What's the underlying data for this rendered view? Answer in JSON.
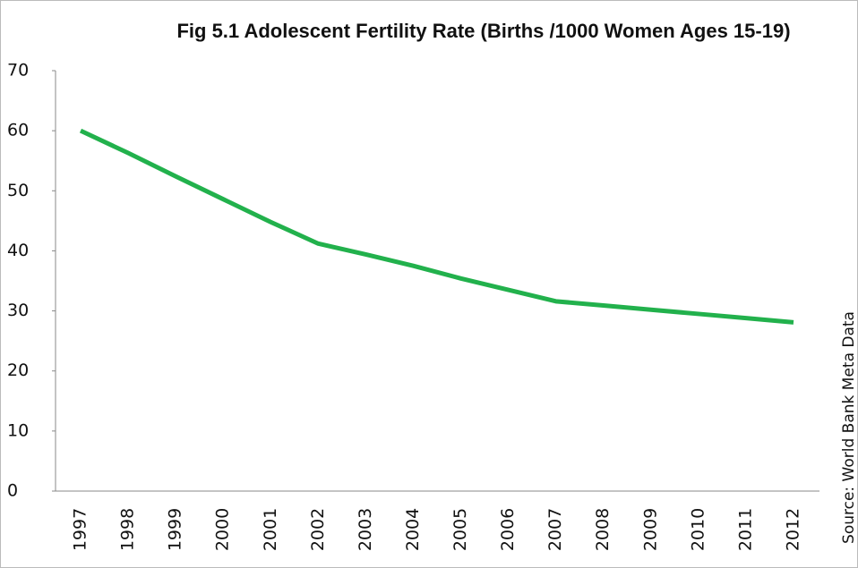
{
  "chart_data": {
    "type": "line",
    "title": "Fig 5.1 Adolescent Fertility Rate (Births /1000 Women Ages 15-19)",
    "source": "Source: World Bank Meta Data",
    "categories": [
      "1997",
      "1998",
      "1999",
      "2000",
      "2001",
      "2002",
      "2003",
      "2004",
      "2005",
      "2006",
      "2007",
      "2008",
      "2009",
      "2010",
      "2011",
      "2012"
    ],
    "series": [
      {
        "name": "Adolescent Fertility Rate",
        "color": "#22b14c",
        "values": [
          60,
          56.3,
          52.4,
          48.6,
          44.8,
          41.2,
          39.4,
          37.5,
          35.4,
          33.5,
          31.6,
          30.9,
          30.2,
          29.5,
          28.8,
          28.1
        ]
      }
    ],
    "ylim": [
      0,
      70
    ],
    "yticks": [
      0,
      10,
      20,
      30,
      40,
      50,
      60,
      70
    ]
  }
}
